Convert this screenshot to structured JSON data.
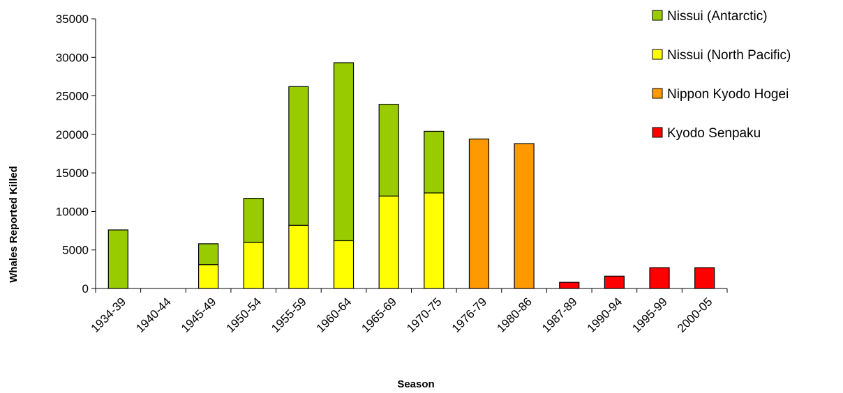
{
  "chart_data": {
    "type": "bar",
    "stacked": true,
    "title": "",
    "xlabel": "Season",
    "ylabel": "Whales Reported Killed",
    "ylim": [
      0,
      35000
    ],
    "yticks": [
      "0",
      "5000",
      "10000",
      "15000",
      "20000",
      "25000",
      "30000",
      "35000"
    ],
    "grid": false,
    "legend_position": "right",
    "categories": [
      "1934-39",
      "1940-44",
      "1945-49",
      "1950-54",
      "1955-59",
      "1960-64",
      "1965-69",
      "1970-75",
      "1976-79",
      "1980-86",
      "1987-89",
      "1990-94",
      "1995-99",
      "2000-05"
    ],
    "series": [
      {
        "name": "Nissui (North Pacific)",
        "color": "#ffff00",
        "values": [
          0,
          0,
          3100,
          6000,
          8200,
          6200,
          12000,
          12400,
          0,
          0,
          0,
          0,
          0,
          0
        ]
      },
      {
        "name": "Nissui (Antarctic)",
        "color": "#99cc00",
        "values": [
          7600,
          0,
          2700,
          5700,
          18000,
          23100,
          11900,
          8000,
          0,
          0,
          0,
          0,
          0,
          0
        ]
      },
      {
        "name": "Nippon Kyodo Hogei",
        "color": "#ff9900",
        "values": [
          0,
          0,
          0,
          0,
          0,
          0,
          0,
          0,
          19400,
          18800,
          0,
          0,
          0,
          0
        ]
      },
      {
        "name": "Kyodo Senpaku",
        "color": "#ff0000",
        "values": [
          0,
          0,
          0,
          0,
          0,
          0,
          0,
          0,
          0,
          0,
          800,
          1600,
          2700,
          2700
        ]
      }
    ],
    "legend_order": [
      "Nissui (Antarctic)",
      "Nissui (North Pacific)",
      "Nippon Kyodo Hogei",
      "Kyodo Senpaku"
    ]
  }
}
